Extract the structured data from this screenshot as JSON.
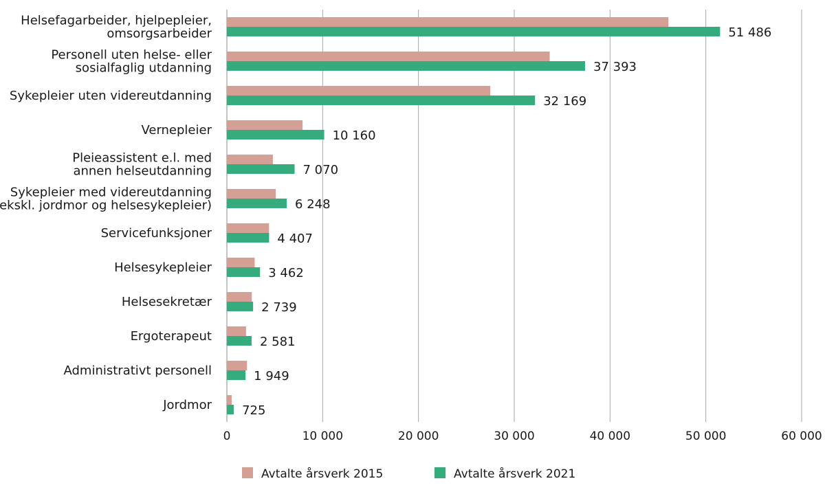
{
  "chart_data": {
    "type": "bar",
    "orientation": "horizontal",
    "title": "",
    "xlabel": "",
    "ylabel": "",
    "xlim": [
      0,
      60000
    ],
    "x_ticks": [
      0,
      10000,
      20000,
      30000,
      40000,
      50000,
      60000
    ],
    "x_tick_labels": [
      "0",
      "10 000",
      "20 000",
      "30 000",
      "40 000",
      "50 000",
      "60 000"
    ],
    "grid": "vertical",
    "legend_position": "bottom",
    "categories": [
      [
        "Helsefagarbeider, hjelpepleier,",
        "omsorgsarbeider"
      ],
      [
        "Personell uten helse- eller",
        "sosialfaglig utdanning"
      ],
      [
        "Sykepleier uten videreutdanning"
      ],
      [
        "Vernepleier"
      ],
      [
        "Pleieassistent e.l. med",
        "annen helseutdanning"
      ],
      [
        "Sykepleier med videreutdanning",
        "(ekskl. jordmor og helsesykepleier)"
      ],
      [
        "Servicefunksjoner"
      ],
      [
        "Helsesykepleier"
      ],
      [
        "Helsesekretær"
      ],
      [
        "Ergoterapeut"
      ],
      [
        "Administrativt personell"
      ],
      [
        "Jordmor"
      ]
    ],
    "series": [
      {
        "name": "Avtalte årsverk 2015",
        "color": "#d4a095",
        "values": [
          46100,
          33700,
          27500,
          7900,
          4800,
          5100,
          4400,
          2900,
          2600,
          2000,
          2100,
          500
        ]
      },
      {
        "name": "Avtalte årsverk 2021",
        "color": "#36ab7e",
        "values": [
          51486,
          37393,
          32169,
          10160,
          7070,
          6248,
          4407,
          3462,
          2739,
          2581,
          1949,
          725
        ],
        "data_labels": [
          "51 486",
          "37 393",
          "32 169",
          "10 160",
          "7 070",
          "6 248",
          "4 407",
          "3 462",
          "2 739",
          "2 581",
          "1 949",
          "725"
        ]
      }
    ]
  }
}
